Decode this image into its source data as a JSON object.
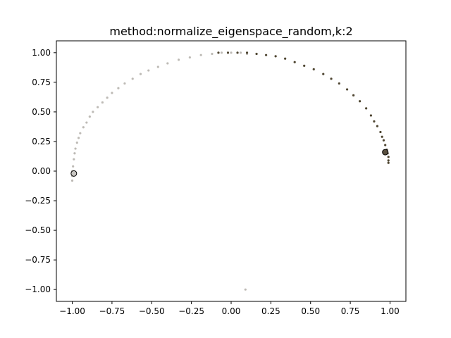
{
  "chart_data": {
    "type": "scatter",
    "title": "method:normalize_eigenspace_random,k:2",
    "xlabel": "",
    "ylabel": "",
    "xlim": [
      -1.1,
      1.1
    ],
    "ylim": [
      -1.1,
      1.1
    ],
    "x_ticks": [
      -1.0,
      -0.75,
      -0.5,
      -0.25,
      0.0,
      0.25,
      0.5,
      0.75,
      1.0
    ],
    "y_ticks": [
      -1.0,
      -0.75,
      -0.5,
      -0.25,
      0.0,
      0.25,
      0.5,
      0.75,
      1.0
    ],
    "x_tick_labels": [
      "−1.00",
      "−0.75",
      "−0.50",
      "−0.25",
      "0.00",
      "0.25",
      "0.50",
      "0.75",
      "1.00"
    ],
    "y_tick_labels": [
      "−1.00",
      "−0.75",
      "−0.50",
      "−0.25",
      "0.00",
      "0.25",
      "0.50",
      "0.75",
      "1.00"
    ],
    "grid": false,
    "legend": "none",
    "series": [
      {
        "color": "#bdbab5",
        "points": [
          [
            -1.0,
            -0.08
          ],
          [
            -1.0,
            -0.04
          ],
          [
            -1.0,
            0.0
          ],
          [
            -0.995,
            0.04
          ],
          [
            -0.99,
            0.1
          ],
          [
            -0.985,
            0.15
          ],
          [
            -0.98,
            0.19
          ],
          [
            -0.97,
            0.24
          ],
          [
            -0.96,
            0.28
          ],
          [
            -0.95,
            0.32
          ],
          [
            -0.93,
            0.37
          ],
          [
            -0.91,
            0.41
          ],
          [
            -0.89,
            0.46
          ],
          [
            -0.87,
            0.5
          ],
          [
            -0.84,
            0.54
          ],
          [
            -0.81,
            0.58
          ],
          [
            -0.78,
            0.62
          ],
          [
            -0.75,
            0.66
          ],
          [
            -0.71,
            0.7
          ],
          [
            -0.67,
            0.74
          ],
          [
            -0.62,
            0.78
          ],
          [
            -0.57,
            0.82
          ],
          [
            -0.52,
            0.85
          ],
          [
            -0.46,
            0.88
          ],
          [
            -0.4,
            0.91
          ],
          [
            -0.33,
            0.94
          ],
          [
            -0.26,
            0.96
          ],
          [
            -0.19,
            0.98
          ],
          [
            -0.12,
            0.99
          ],
          [
            -0.06,
            1.0
          ],
          [
            0.0,
            1.0
          ],
          [
            0.06,
            1.0
          ],
          [
            0.1,
            0.99
          ],
          [
            0.09,
            -1.0
          ]
        ]
      },
      {
        "color": "#4f4632",
        "points": [
          [
            -0.08,
            1.0
          ],
          [
            -0.02,
            1.0
          ],
          [
            0.04,
            1.0
          ],
          [
            0.1,
            1.0
          ],
          [
            0.16,
            0.99
          ],
          [
            0.22,
            0.98
          ],
          [
            0.28,
            0.97
          ],
          [
            0.34,
            0.95
          ],
          [
            0.4,
            0.92
          ],
          [
            0.46,
            0.89
          ],
          [
            0.52,
            0.86
          ],
          [
            0.58,
            0.82
          ],
          [
            0.63,
            0.78
          ],
          [
            0.68,
            0.74
          ],
          [
            0.73,
            0.69
          ],
          [
            0.77,
            0.64
          ],
          [
            0.81,
            0.59
          ],
          [
            0.85,
            0.53
          ],
          [
            0.88,
            0.47
          ],
          [
            0.9,
            0.42
          ],
          [
            0.92,
            0.38
          ],
          [
            0.94,
            0.33
          ],
          [
            0.95,
            0.29
          ],
          [
            0.96,
            0.26
          ],
          [
            0.97,
            0.22
          ],
          [
            0.98,
            0.18
          ],
          [
            0.985,
            0.15
          ],
          [
            0.99,
            0.12
          ],
          [
            0.99,
            0.09
          ],
          [
            0.99,
            0.07
          ]
        ]
      }
    ],
    "centers": [
      {
        "x": -0.99,
        "y": -0.02,
        "color": "#c8c6c2"
      },
      {
        "x": 0.97,
        "y": 0.16,
        "color": "#5a5040"
      }
    ]
  }
}
